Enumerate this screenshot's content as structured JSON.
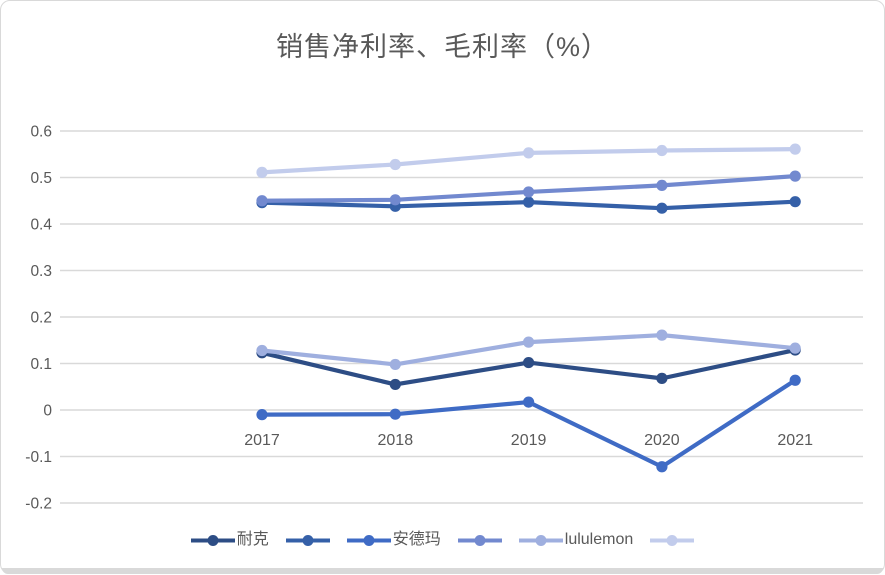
{
  "title": "销售净利率、毛利率（%）",
  "colors": {
    "gridline": "#D9D9D9",
    "text": "#595959",
    "frame_border": "#D9D9D9"
  },
  "chart_data": {
    "type": "line",
    "title": "销售净利率、毛利率（%）",
    "categories": [
      "2017",
      "2018",
      "2019",
      "2020",
      "2021"
    ],
    "series": [
      {
        "name": "耐克",
        "color": "#2D4D85",
        "values": [
          0.123,
          0.055,
          0.102,
          0.068,
          0.129
        ]
      },
      {
        "name": "",
        "color": "#3560A8",
        "values": [
          0.446,
          0.438,
          0.447,
          0.434,
          0.448
        ]
      },
      {
        "name": "安德玛",
        "color": "#3F6BC5",
        "values": [
          -0.01,
          -0.009,
          0.017,
          -0.122,
          0.064
        ]
      },
      {
        "name": "",
        "color": "#7289CF",
        "values": [
          0.45,
          0.452,
          0.469,
          0.483,
          0.503
        ]
      },
      {
        "name": "lululemon",
        "color": "#9FAFDF",
        "values": [
          0.128,
          0.098,
          0.146,
          0.161,
          0.133
        ]
      },
      {
        "name": "",
        "color": "#C2CCEC",
        "values": [
          0.511,
          0.528,
          0.553,
          0.558,
          0.561
        ]
      }
    ],
    "ylim": [
      -0.2,
      0.6
    ],
    "ytick_step": 0.1,
    "ytick_labels": [
      "0.6",
      "0.5",
      "0.4",
      "0.3",
      "0.2",
      "0.1",
      "0",
      "-0.1",
      "-0.2"
    ],
    "grid": true,
    "legend_position": "bottom"
  }
}
